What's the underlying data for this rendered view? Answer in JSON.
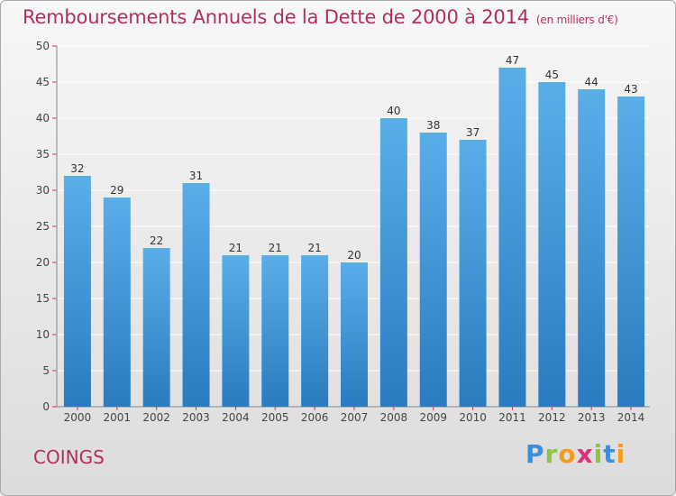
{
  "title": "Remboursements Annuels de la Dette de 2000 à 2014",
  "unit": "(en milliers d'€)",
  "commune": "COINGS",
  "logo": {
    "text": "Proxiti",
    "letters": [
      {
        "char": "P",
        "color": "#3a8fd8"
      },
      {
        "char": "r",
        "color": "#8cc540"
      },
      {
        "char": "o",
        "color": "#f29b1d"
      },
      {
        "char": "x",
        "color": "#e0307c"
      },
      {
        "char": "i",
        "color": "#8cc540"
      },
      {
        "char": "t",
        "color": "#3a8fd8"
      },
      {
        "char": "i",
        "color": "#f29b1d"
      }
    ]
  },
  "colors": {
    "title": "#b0305c",
    "bar_top": "#5aaee8",
    "bar_bottom": "#2a7bbf",
    "grid": "#ffffff",
    "axis_tick": "#d0306a"
  },
  "chart_data": {
    "type": "bar",
    "categories": [
      "2000",
      "2001",
      "2002",
      "2003",
      "2004",
      "2005",
      "2006",
      "2007",
      "2008",
      "2009",
      "2010",
      "2011",
      "2012",
      "2013",
      "2014"
    ],
    "values": [
      32,
      29,
      22,
      31,
      21,
      21,
      21,
      20,
      40,
      38,
      37,
      47,
      45,
      44,
      43
    ],
    "yticks": [
      0,
      5,
      10,
      15,
      20,
      25,
      30,
      35,
      40,
      45,
      50
    ],
    "ylim": [
      0,
      50
    ],
    "grid": true,
    "title": "Remboursements Annuels de la Dette de 2000 à 2014"
  }
}
